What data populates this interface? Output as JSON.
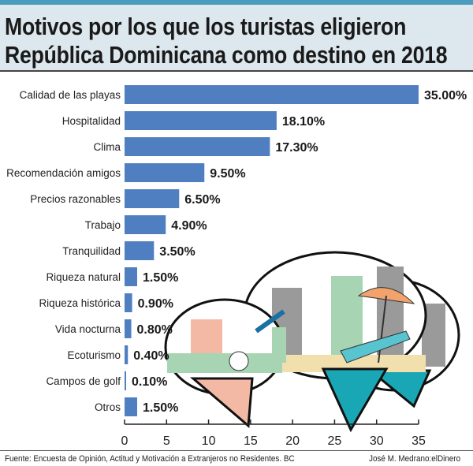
{
  "chart_data": {
    "type": "bar",
    "orientation": "horizontal",
    "title": "Motivos por los que los turistas eligieron República Dominicana como destino en 2018",
    "categories": [
      "Calidad de las playas",
      "Hospitalidad",
      "Clima",
      "Recomendación amigos",
      "Precios razonables",
      "Trabajo",
      "Tranquilidad",
      "Riqueza natural",
      "Riqueza histórica",
      "Vida nocturna",
      "Ecoturismo",
      "Campos de golf",
      "Otros"
    ],
    "values": [
      35.0,
      18.1,
      17.3,
      9.5,
      6.5,
      4.9,
      3.5,
      1.5,
      0.9,
      0.8,
      0.4,
      0.1,
      1.5
    ],
    "data_labels": [
      "35.00%",
      "18.10%",
      "17.30%",
      "9.50%",
      "6.50%",
      "4.90%",
      "3.50%",
      "1.50%",
      "0.90%",
      "0.80%",
      "0.40%",
      "0.10%",
      "1.50%"
    ],
    "xlim": [
      0,
      35
    ],
    "xticks": [
      "0",
      "5",
      "10",
      "15",
      "20",
      "25",
      "30",
      "35"
    ],
    "grid": false,
    "bar_color": "#4f7fc1"
  },
  "title_lines": [
    "Motivos por los que los turistas eligieron",
    "República Dominicana como destino en 2018"
  ],
  "footer": {
    "source": "Fuente: Encuesta de Opinión, Actitud y Motivación a Extranjeros no Residentes. BC",
    "credit": "José M. Medrano:elDinero"
  }
}
